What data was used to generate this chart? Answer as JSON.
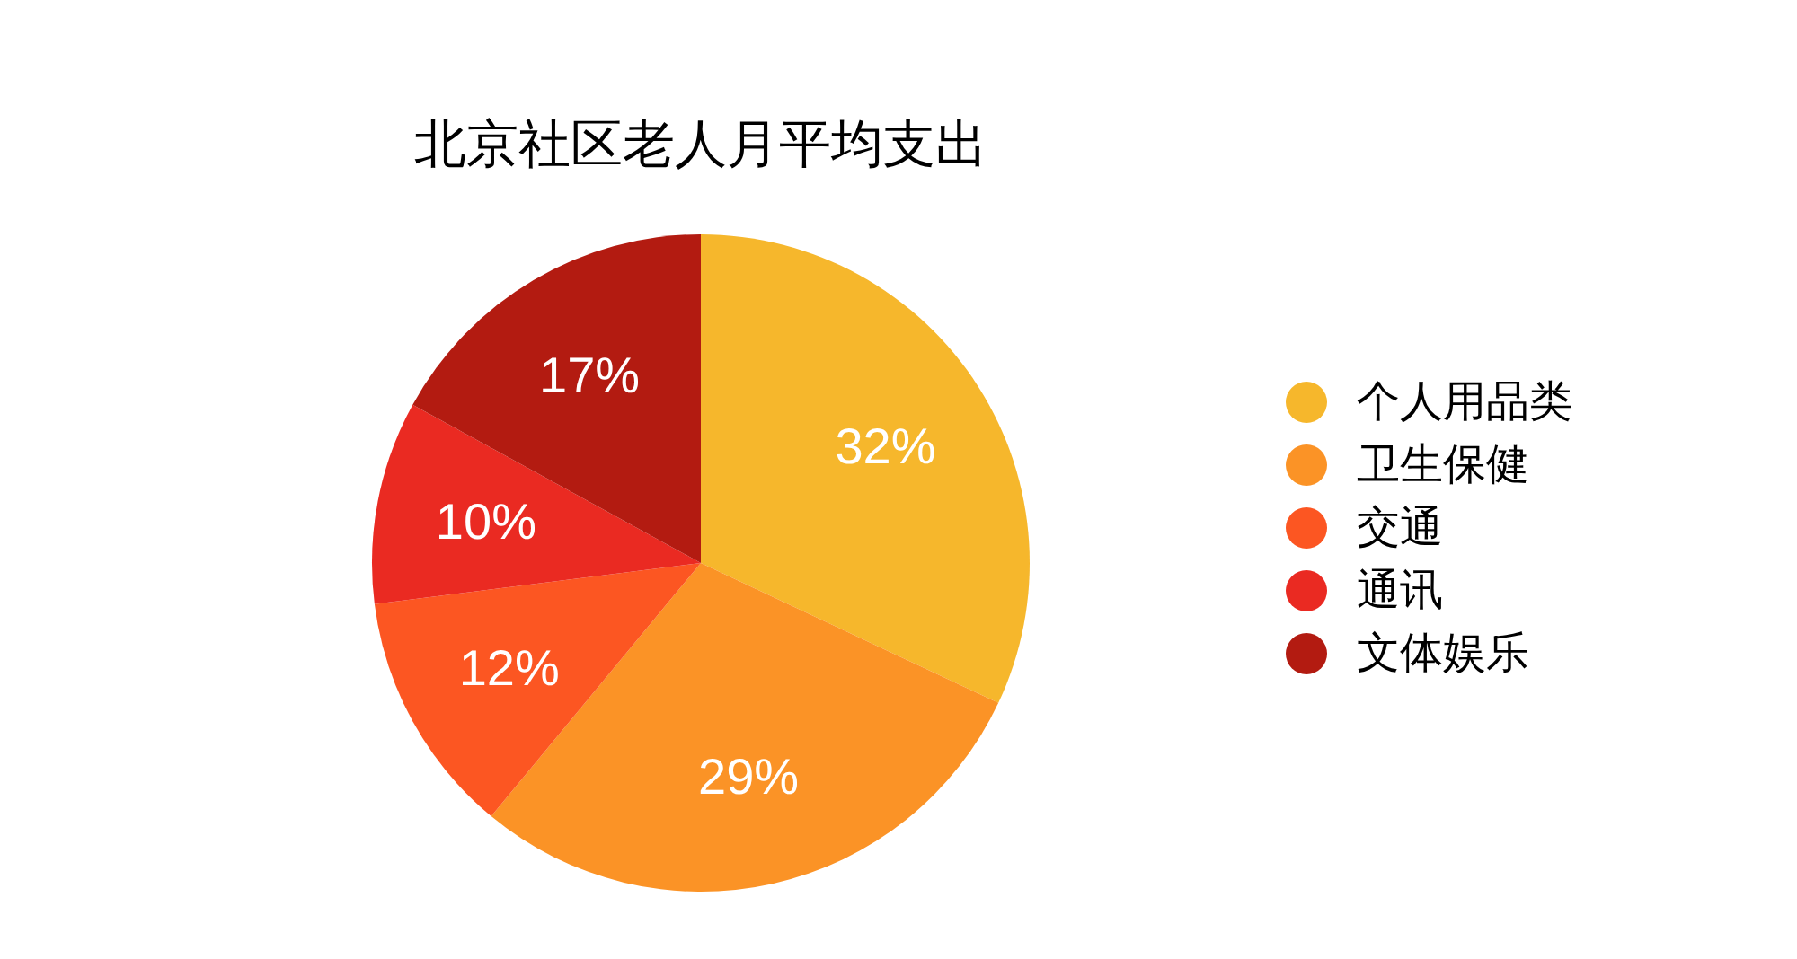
{
  "chart_data": {
    "type": "pie",
    "title": "北京社区老人月平均支出",
    "categories": [
      "个人用品类",
      "卫生保健",
      "交通",
      "通讯",
      "文体娱乐"
    ],
    "values": [
      32,
      29,
      12,
      10,
      17
    ],
    "colors": [
      "#f6b72c",
      "#fb9326",
      "#fc5622",
      "#ea2a22",
      "#b31b11"
    ],
    "value_labels": [
      "32%",
      "29%",
      "12%",
      "10%",
      "17%"
    ],
    "legend": "right"
  }
}
